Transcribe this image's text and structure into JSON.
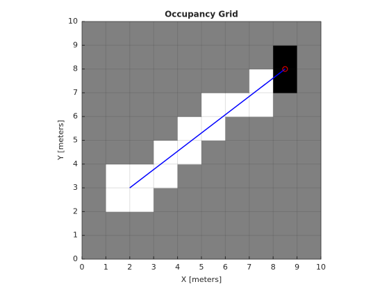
{
  "chart_data": {
    "type": "occupancy",
    "title": "Occupancy Grid",
    "xlabel": "X [meters]",
    "ylabel": "Y [meters]",
    "xlim": [
      0,
      10
    ],
    "ylim": [
      0,
      10
    ],
    "xticks": [
      0,
      1,
      2,
      3,
      4,
      5,
      6,
      7,
      8,
      9,
      10
    ],
    "yticks": [
      0,
      1,
      2,
      3,
      4,
      5,
      6,
      7,
      8,
      9,
      10
    ],
    "grid": true,
    "occupancy": [
      [
        0.5,
        0.5,
        0.5,
        0.5,
        0.5,
        0.5,
        0.5,
        0.5,
        0.5,
        0.5
      ],
      [
        0.5,
        0.5,
        0.5,
        0.5,
        0.5,
        0.5,
        0.5,
        0.5,
        0.5,
        0.5
      ],
      [
        0.5,
        0,
        0,
        0.5,
        0.5,
        0.5,
        0.5,
        0.5,
        0.5,
        0.5
      ],
      [
        0.5,
        0,
        0,
        0,
        0.5,
        0.5,
        0.5,
        0.5,
        0.5,
        0.5
      ],
      [
        0.5,
        0.5,
        0.5,
        0,
        0,
        0.5,
        0.5,
        0.5,
        0.5,
        0.5
      ],
      [
        0.5,
        0.5,
        0.5,
        0.5,
        0,
        0,
        0.5,
        0.5,
        0.5,
        0.5
      ],
      [
        0.5,
        0.5,
        0.5,
        0.5,
        0.5,
        0,
        0,
        0,
        0.5,
        0.5
      ],
      [
        0.5,
        0.5,
        0.5,
        0.5,
        0.5,
        0.5,
        0.5,
        0,
        1,
        0.5
      ],
      [
        0.5,
        0.5,
        0.5,
        0.5,
        0.5,
        0.5,
        0.5,
        0.5,
        1,
        0.5
      ],
      [
        0.5,
        0.5,
        0.5,
        0.5,
        0.5,
        0.5,
        0.5,
        0.5,
        0.5,
        0.5
      ]
    ],
    "path": {
      "x": [
        2,
        8.5
      ],
      "y": [
        3,
        8
      ],
      "color": "#0000ff"
    },
    "marker": {
      "x": 8.5,
      "y": 8,
      "color": "#ff0000"
    }
  }
}
